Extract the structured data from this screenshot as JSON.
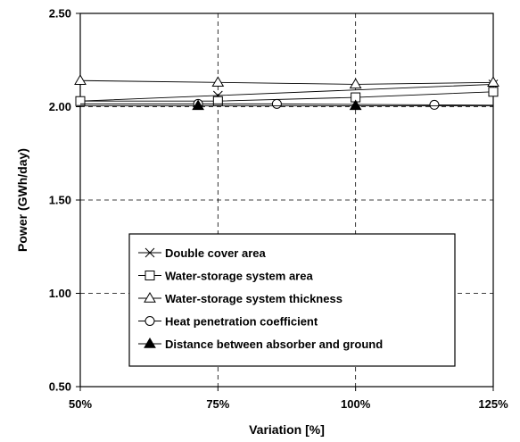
{
  "chart_data": {
    "type": "line",
    "title": "",
    "xlabel": "Variation [%]",
    "ylabel": "Power (GWh/day)",
    "xlim": [
      50,
      125
    ],
    "ylim": [
      0.5,
      2.5
    ],
    "x_ticks": [
      50,
      75,
      100,
      125
    ],
    "x_tick_labels": [
      "50%",
      "75%",
      "100%",
      "125%"
    ],
    "y_ticks": [
      0.5,
      1.0,
      1.5,
      2.0,
      2.5
    ],
    "y_tick_labels": [
      "0.50",
      "1.00",
      "1.50",
      "2.00",
      "2.50"
    ],
    "grid": true,
    "legend_position": "bottom-center",
    "series": [
      {
        "name": "Double cover area",
        "marker": "x",
        "x": [
          50,
          75,
          125
        ],
        "y": [
          2.03,
          2.06,
          2.12
        ]
      },
      {
        "name": "Water-storage system area",
        "marker": "square",
        "x": [
          50,
          75,
          100,
          125
        ],
        "y": [
          2.03,
          2.03,
          2.05,
          2.08
        ]
      },
      {
        "name": "Water-storage system thickness",
        "marker": "triangle-open",
        "x": [
          50,
          75,
          100,
          125
        ],
        "y": [
          2.14,
          2.13,
          2.12,
          2.13
        ]
      },
      {
        "name": "Heat penetration coefficient",
        "marker": "circle",
        "x": [
          71.4,
          85.7,
          114.3
        ],
        "y": [
          2.015,
          2.015,
          2.01
        ]
      },
      {
        "name": "Distance between absorber and ground",
        "marker": "triangle-filled",
        "x": [
          71.4,
          100
        ],
        "y": [
          2.005,
          2.005
        ]
      }
    ]
  }
}
